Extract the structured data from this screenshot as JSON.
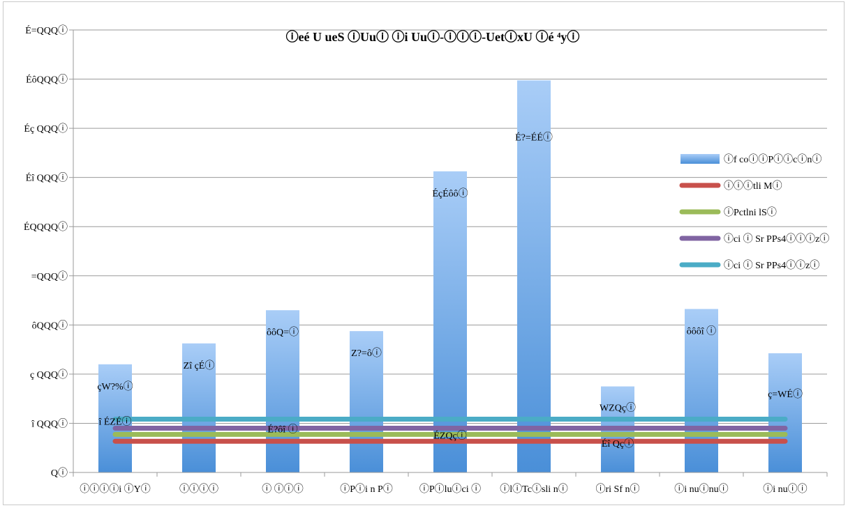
{
  "chart_data": {
    "type": "bar",
    "title": "ⓘeé U ueS ⓘUuⓘ ⓘi Uuⓘ-ⓘⓘⓘ-UetⓘxU ⓘé ⁴yⓘ",
    "xlabel": "",
    "ylabel": "",
    "ylim": [
      0,
      18000
    ],
    "yticks": [
      0,
      2000,
      4000,
      6000,
      8000,
      10000,
      12000,
      14000,
      16000,
      18000
    ],
    "ytick_labels": [
      "Qⓘ",
      "î QQQⓘ",
      "ç QQQⓘ",
      "ôQQQⓘ",
      "=QQQⓘ",
      "ÉQQQQⓘ",
      "Éî QQQⓘ",
      "Éç QQQⓘ",
      "ÉôQQQⓘ",
      "É=QQQⓘ"
    ],
    "categories": [
      "ⓘⓘⓘⓘi ⓘYⓘ",
      "ⓘⓘⓘⓘ",
      "ⓘ ⓘⓘⓘ",
      "ⓘPⓘi n Pⓘ",
      "ⓘPⓘluⓘci ⓘ",
      "ⓘlⓘTcⓘsli nⓘ",
      "ⓘri Sf nⓘ",
      "ⓘi nuⓘnuⓘ",
      "ⓘi nuⓘⓘ"
    ],
    "series": [
      {
        "name": "ⓘf coⓘⓘPⓘⓘcⓘnⓘ",
        "kind": "bar",
        "color": "#4f8fd6",
        "values": [
          4400,
          5250,
          6600,
          5750,
          12250,
          15950,
          3500,
          6650,
          4850
        ],
        "labels": [
          "çW?%ⓘ",
          "Zî çÉⓘ",
          "ôôQ=ⓘ",
          "Z?=ôⓘ",
          "ÉçÉôôⓘ",
          "É?=ÉÉⓘ",
          "",
          "ôôôî ⓘ",
          "ç=WÉⓘ"
        ]
      },
      {
        "name": "ⓘⓘⓘtli Mⓘ",
        "kind": "line",
        "color": "#c8504b",
        "values": [
          1270,
          1270,
          1270,
          1270,
          1270,
          1270,
          1270,
          1270,
          1270
        ],
        "labels": [
          "",
          "",
          "",
          "",
          "",
          "",
          "Éî Qçⓘ",
          "",
          ""
        ]
      },
      {
        "name": "ⓘPctlni lSⓘ",
        "kind": "line",
        "color": "#9bbb59",
        "values": [
          1550,
          1550,
          1550,
          1550,
          1550,
          1550,
          1550,
          1550,
          1550
        ],
        "labels": [
          "",
          "",
          "",
          "",
          "ÉZQçⓘ",
          "",
          "",
          "",
          ""
        ]
      },
      {
        "name": "ⓘci ⓘ Sr PPs4ⓘⓘⓘzⓘ",
        "kind": "line",
        "color": "#8064a2",
        "values": [
          1800,
          1800,
          1800,
          1800,
          1800,
          1800,
          1800,
          1800,
          1800
        ],
        "labels": [
          "",
          "",
          "É?ôî ⓘ",
          "",
          "",
          "",
          "",
          "",
          ""
        ]
      },
      {
        "name": "ⓘci ⓘ Sr PPs4ⓘⓘzⓘ",
        "kind": "line",
        "color": "#4bacc6",
        "values": [
          2170,
          2170,
          2170,
          2170,
          2170,
          2170,
          2170,
          2170,
          2170
        ],
        "labels": [
          "î ÉZÉⓘ",
          "",
          "",
          "",
          "",
          "",
          "WZQçⓘ",
          "",
          ""
        ]
      }
    ],
    "grid": true,
    "legend_position": "right"
  }
}
